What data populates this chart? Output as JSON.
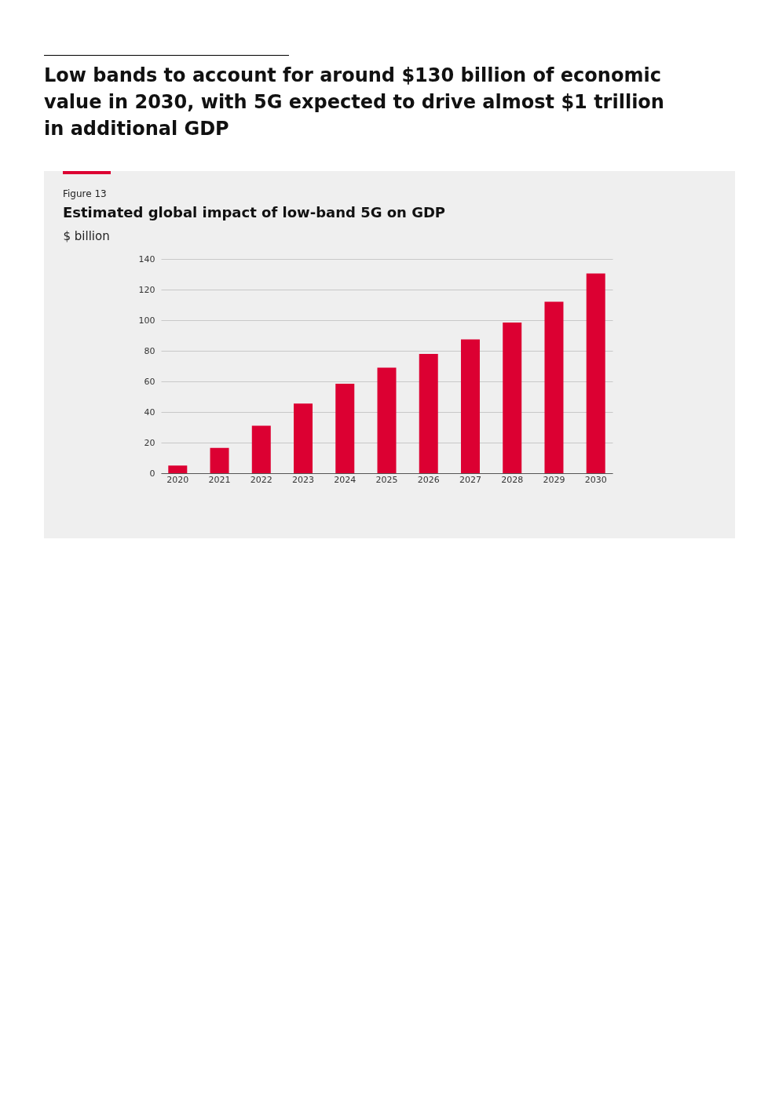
{
  "chart_data": {
    "type": "bar",
    "title": "Low bands to account for around $130 billion of economic value in 2030, with 5G expected to drive almost $1 trillion in additional GDP",
    "subtitle": "Estimated global impact of low-band 5G on GDP",
    "ylabel": "$ billion",
    "annotations": [
      "Figure 13"
    ],
    "categories": [
      "2020",
      "2021",
      "2022",
      "2023",
      "2024",
      "2025",
      "2026",
      "2027",
      "2028",
      "2029",
      "2030"
    ],
    "values": [
      5,
      16.5,
      31,
      45.5,
      58.5,
      69,
      78,
      87.5,
      98.5,
      112,
      130.5
    ],
    "color": "#dc0032",
    "ylim": [
      0,
      140
    ],
    "yticks": [
      0,
      20,
      40,
      60,
      80,
      100,
      120,
      140
    ],
    "grid": "y"
  }
}
